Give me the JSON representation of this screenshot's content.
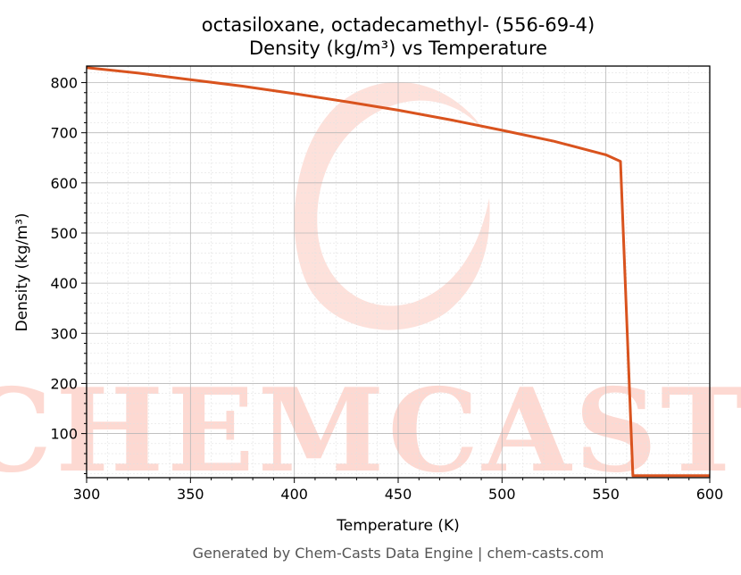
{
  "chart_data": {
    "type": "line",
    "title_line1": "octasiloxane, octadecamethyl- (556-69-4)",
    "title_line2": "Density (kg/m³) vs Temperature",
    "xlabel": "Temperature (K)",
    "ylabel": "Density (kg/m³)",
    "xlim": [
      300,
      600
    ],
    "ylim": [
      12,
      833
    ],
    "xticks": [
      300,
      350,
      400,
      450,
      500,
      550,
      600
    ],
    "yticks": [
      100,
      200,
      300,
      400,
      500,
      600,
      700,
      800
    ],
    "grid": true,
    "series": [
      {
        "color": "#d9531e",
        "x": [
          300,
          325,
          350,
          375,
          400,
          425,
          450,
          475,
          500,
          525,
          550,
          557,
          563,
          600
        ],
        "y": [
          830,
          819,
          806,
          793,
          778,
          762,
          745,
          726,
          705,
          683,
          656,
          643,
          16,
          16
        ]
      }
    ]
  },
  "watermark": {
    "text": "CHEMCASTS",
    "color": "#fdd9d2"
  },
  "footer": "Generated by Chem-Casts Data Engine | chem-casts.com"
}
